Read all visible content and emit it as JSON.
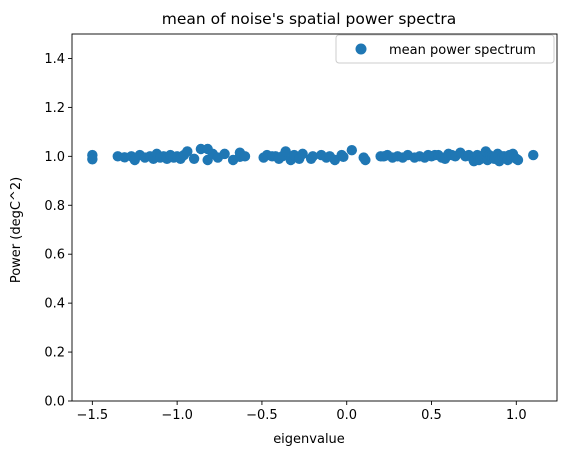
{
  "chart_data": {
    "type": "scatter",
    "title": "mean of noise's spatial power spectra",
    "xlabel": "eigenvalue",
    "ylabel": "Power (degC^2)",
    "xlim": [
      -1.62,
      1.24
    ],
    "ylim": [
      0.0,
      1.5
    ],
    "xticks": [
      -1.5,
      -1.0,
      -0.5,
      0.0,
      0.5,
      1.0
    ],
    "xtick_labels": [
      "−1.5",
      "−1.0",
      "−0.5",
      "0.0",
      "0.5",
      "1.0"
    ],
    "yticks": [
      0.0,
      0.2,
      0.4,
      0.6,
      0.8,
      1.0,
      1.2,
      1.4
    ],
    "ytick_labels": [
      "0.0",
      "0.2",
      "0.4",
      "0.6",
      "0.8",
      "1.0",
      "1.2",
      "1.4"
    ],
    "grid": false,
    "legend_position": "top-right",
    "series_color": "#1f77b4",
    "series": [
      {
        "name": "mean power spectrum",
        "x": [
          -1.5,
          -1.5,
          -1.35,
          -1.31,
          -1.27,
          -1.25,
          -1.22,
          -1.19,
          -1.16,
          -1.14,
          -1.12,
          -1.1,
          -1.08,
          -1.06,
          -1.04,
          -1.02,
          -1.0,
          -0.98,
          -0.96,
          -0.94,
          -0.9,
          -0.86,
          -0.82,
          -0.82,
          -0.79,
          -0.76,
          -0.72,
          -0.67,
          -0.63,
          -0.63,
          -0.6,
          -0.49,
          -0.47,
          -0.44,
          -0.42,
          -0.4,
          -0.38,
          -0.36,
          -0.33,
          -0.31,
          -0.28,
          -0.26,
          -0.21,
          -0.2,
          -0.15,
          -0.12,
          -0.1,
          -0.07,
          -0.03,
          -0.02,
          0.03,
          0.1,
          0.11,
          0.2,
          0.22,
          0.24,
          0.27,
          0.3,
          0.33,
          0.36,
          0.4,
          0.43,
          0.46,
          0.48,
          0.5,
          0.52,
          0.54,
          0.56,
          0.58,
          0.6,
          0.62,
          0.64,
          0.67,
          0.7,
          0.72,
          0.74,
          0.75,
          0.77,
          0.78,
          0.79,
          0.8,
          0.81,
          0.82,
          0.83,
          0.84,
          0.85,
          0.86,
          0.87,
          0.88,
          0.89,
          0.9,
          0.92,
          0.93,
          0.95,
          0.96,
          0.97,
          0.98,
          0.99,
          1.0,
          1.01,
          1.1
        ],
        "y": [
          1.005,
          0.988,
          1.0,
          0.996,
          1.0,
          0.985,
          1.005,
          0.995,
          1.0,
          0.99,
          1.01,
          0.995,
          1.0,
          0.99,
          1.005,
          0.995,
          1.0,
          0.99,
          1.005,
          1.02,
          0.99,
          1.03,
          0.985,
          1.03,
          1.01,
          0.995,
          1.01,
          0.985,
          0.998,
          1.015,
          1.0,
          0.995,
          1.005,
          1.0,
          1.0,
          0.99,
          1.0,
          1.02,
          0.985,
          1.005,
          0.99,
          1.01,
          0.99,
          1.0,
          1.005,
          0.995,
          1.0,
          0.985,
          1.005,
          0.998,
          1.025,
          0.995,
          0.985,
          1.0,
          1.0,
          1.005,
          0.995,
          1.0,
          0.995,
          1.005,
          0.995,
          1.0,
          0.995,
          1.005,
          1.0,
          1.005,
          1.005,
          0.995,
          0.99,
          1.01,
          1.005,
          1.0,
          1.015,
          1.0,
          1.005,
          0.995,
          0.98,
          1.005,
          0.985,
          0.99,
          1.0,
          0.995,
          1.02,
          0.985,
          1.005,
          1.0,
          0.995,
          0.99,
          1.0,
          1.01,
          0.98,
          1.0,
          1.0,
          0.985,
          1.005,
          1.0,
          1.01,
          0.995,
          0.99,
          0.985,
          1.005
        ]
      }
    ]
  }
}
